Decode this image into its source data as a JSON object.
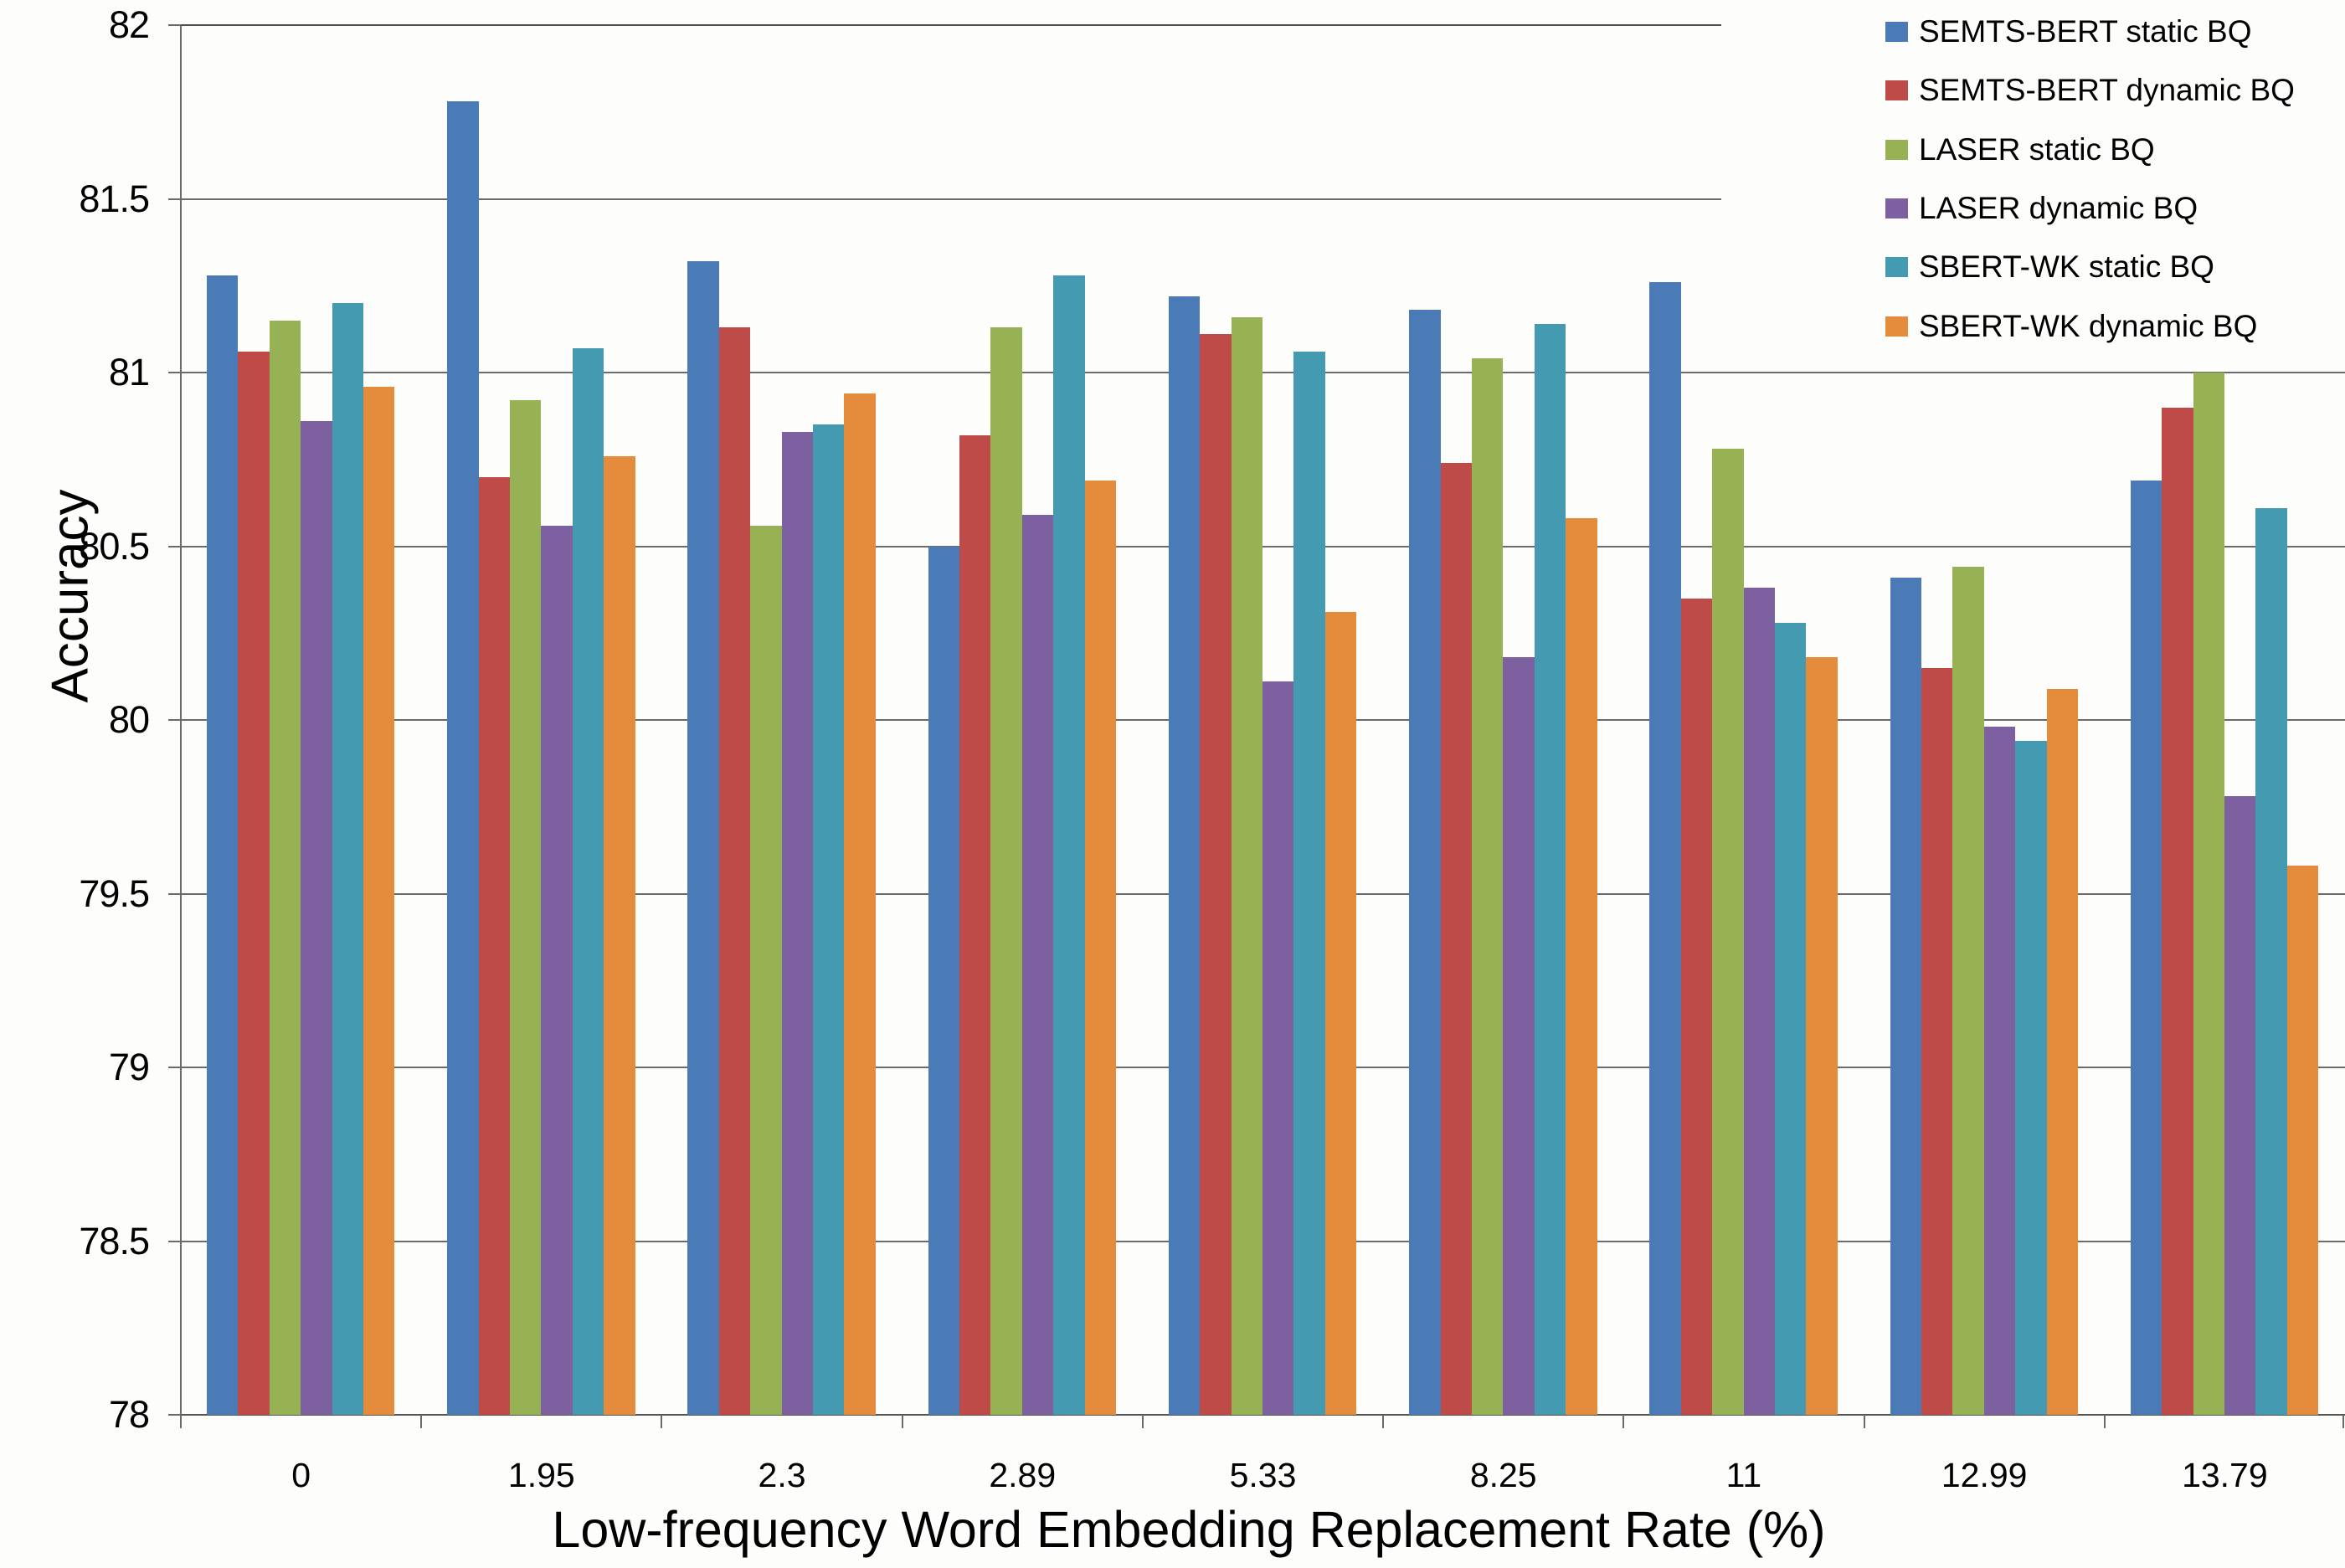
{
  "chart_data": {
    "type": "bar",
    "title": "",
    "xlabel": "Low-frequency Word Embedding Replacement Rate (%)",
    "ylabel": "Accuracy",
    "ylim": [
      78,
      82
    ],
    "ytick_step": 0.5,
    "grid": true,
    "legend_position": "top-right",
    "categories": [
      "0",
      "1.95",
      "2.3",
      "2.89",
      "5.33",
      "8.25",
      "11",
      "12.99",
      "13.79"
    ],
    "series": [
      {
        "name": "SEMTS-BERT static BQ",
        "color": "#4B7BB7",
        "values": [
          81.28,
          81.78,
          81.32,
          80.5,
          81.22,
          81.18,
          81.26,
          80.41,
          80.69
        ]
      },
      {
        "name": "SEMTS-BERT dynamic BQ",
        "color": "#BE4B48",
        "values": [
          81.06,
          80.7,
          81.13,
          80.82,
          81.11,
          80.74,
          80.35,
          80.15,
          80.9
        ]
      },
      {
        "name": "LASER static BQ",
        "color": "#97B254",
        "values": [
          81.15,
          80.92,
          80.56,
          81.13,
          81.16,
          81.04,
          80.78,
          80.44,
          81.0
        ]
      },
      {
        "name": "LASER dynamic BQ",
        "color": "#7D60A0",
        "values": [
          80.86,
          80.56,
          80.83,
          80.59,
          80.11,
          80.18,
          80.38,
          79.98,
          79.78
        ]
      },
      {
        "name": "SBERT-WK static BQ",
        "color": "#449BB1",
        "values": [
          81.2,
          81.07,
          80.85,
          81.28,
          81.06,
          81.14,
          80.28,
          79.94,
          80.61
        ]
      },
      {
        "name": "SBERT-WK dynamic BQ",
        "color": "#E48B3C",
        "values": [
          80.96,
          80.76,
          80.94,
          80.69,
          80.31,
          80.58,
          80.18,
          80.09,
          79.58
        ]
      }
    ]
  }
}
